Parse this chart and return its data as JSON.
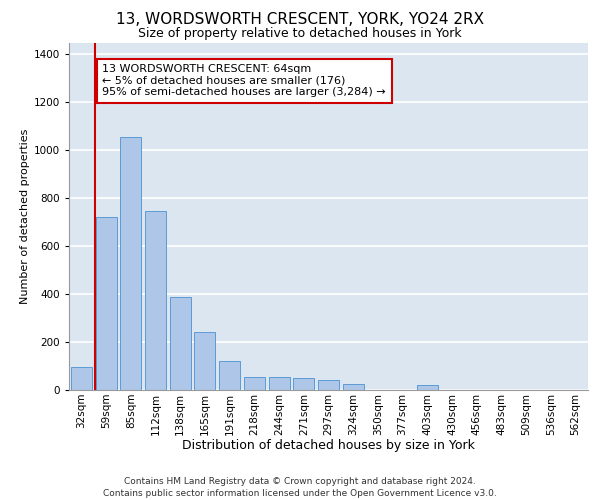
{
  "title": "13, WORDSWORTH CRESCENT, YORK, YO24 2RX",
  "subtitle": "Size of property relative to detached houses in York",
  "xlabel": "Distribution of detached houses by size in York",
  "ylabel": "Number of detached properties",
  "bar_categories": [
    "32sqm",
    "59sqm",
    "85sqm",
    "112sqm",
    "138sqm",
    "165sqm",
    "191sqm",
    "218sqm",
    "244sqm",
    "271sqm",
    "297sqm",
    "324sqm",
    "350sqm",
    "377sqm",
    "403sqm",
    "430sqm",
    "456sqm",
    "483sqm",
    "509sqm",
    "536sqm",
    "562sqm"
  ],
  "bar_values": [
    95,
    720,
    1055,
    745,
    390,
    240,
    120,
    55,
    55,
    50,
    40,
    25,
    0,
    0,
    20,
    0,
    0,
    0,
    0,
    0,
    0
  ],
  "bar_color": "#aec6e8",
  "bar_edge_color": "#5b9bd5",
  "background_color": "#dce6f0",
  "grid_color": "#ffffff",
  "property_line_color": "#cc0000",
  "annotation_text": "13 WORDSWORTH CRESCENT: 64sqm\n← 5% of detached houses are smaller (176)\n95% of semi-detached houses are larger (3,284) →",
  "annotation_box_color": "#ffffff",
  "annotation_box_edge": "#cc0000",
  "ylim": [
    0,
    1450
  ],
  "yticks": [
    0,
    200,
    400,
    600,
    800,
    1000,
    1200,
    1400
  ],
  "footer": "Contains HM Land Registry data © Crown copyright and database right 2024.\nContains public sector information licensed under the Open Government Licence v3.0.",
  "title_fontsize": 11,
  "subtitle_fontsize": 9,
  "xlabel_fontsize": 9,
  "ylabel_fontsize": 8,
  "tick_fontsize": 7.5,
  "annotation_fontsize": 8,
  "footer_fontsize": 6.5
}
